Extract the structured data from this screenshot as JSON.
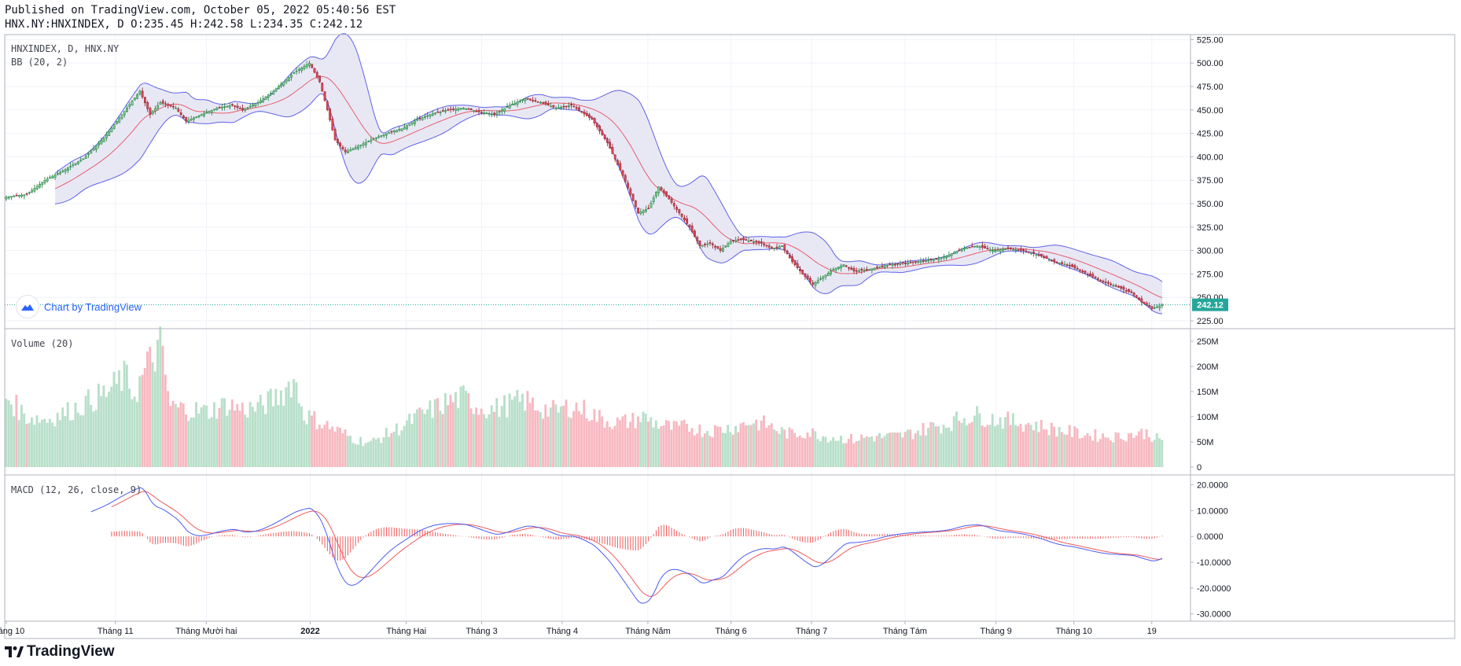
{
  "header": {
    "published": "Published on TradingView.com, October 05, 2022 05:40:56 EST",
    "ohlc": "HNX.NY:HNXINDEX, D O:235.45 H:242.58 L:234.35 C:242.12"
  },
  "panes": {
    "price_label": "HNXINDEX, D, HNX.NY",
    "bb_label": "BB (20, 2)",
    "volume_label": "Volume (20)",
    "macd_label": "MACD (12, 26, close, 9)"
  },
  "watermark": {
    "text": "Chart by TradingView",
    "icon": "tradingview-cloud-icon"
  },
  "footer": {
    "logo_text": "TradingView",
    "icon": "tradingview-logo-icon"
  },
  "colors": {
    "up": "#26a69a",
    "up_fill": "#7fcf8f",
    "down": "#ef5350",
    "down_fill": "#e0485a",
    "bb_band": "#6161e8",
    "bb_fill": "#e6e6f4",
    "bb_basis": "#e85d6a",
    "vol_up": "#b7dfc9",
    "vol_down": "#f7b8c0",
    "macd": "#4d5bf0",
    "signal": "#f05a5a",
    "hist": "#f05a5a",
    "last_price": "#26a69a"
  },
  "chart_data": [
    {
      "type": "candlestick",
      "title": "HNXINDEX, D, HNX.NY",
      "last_close": 242.12,
      "last_label": "242.12",
      "yaxis_ticks": [
        "525.00",
        "500.00",
        "475.00",
        "450.00",
        "425.00",
        "400.00",
        "375.00",
        "350.00",
        "325.00",
        "300.00",
        "275.00",
        "250.00",
        "225.00"
      ],
      "ylim": [
        220,
        527
      ],
      "xaxis_ticks": [
        "Tháng 10",
        "Tháng 11",
        "Tháng Mười hai",
        "2022",
        "Tháng Hai",
        "Tháng 3",
        "Tháng 4",
        "Tháng Năm",
        "Tháng 6",
        "Tháng 7",
        "Tháng Tám",
        "Tháng 9",
        "Tháng 10",
        "19"
      ],
      "close_keypoints": [
        [
          0,
          357
        ],
        [
          8,
          360
        ],
        [
          15,
          375
        ],
        [
          22,
          385
        ],
        [
          30,
          398
        ],
        [
          38,
          420
        ],
        [
          45,
          445
        ],
        [
          52,
          470
        ],
        [
          56,
          445
        ],
        [
          60,
          458
        ],
        [
          66,
          452
        ],
        [
          70,
          438
        ],
        [
          76,
          445
        ],
        [
          82,
          452
        ],
        [
          88,
          455
        ],
        [
          92,
          450
        ],
        [
          98,
          458
        ],
        [
          104,
          470
        ],
        [
          112,
          490
        ],
        [
          118,
          500
        ],
        [
          122,
          480
        ],
        [
          125,
          450
        ],
        [
          128,
          418
        ],
        [
          132,
          405
        ],
        [
          136,
          410
        ],
        [
          142,
          418
        ],
        [
          148,
          425
        ],
        [
          154,
          430
        ],
        [
          160,
          440
        ],
        [
          166,
          446
        ],
        [
          172,
          450
        ],
        [
          178,
          452
        ],
        [
          184,
          448
        ],
        [
          190,
          445
        ],
        [
          196,
          455
        ],
        [
          202,
          462
        ],
        [
          208,
          458
        ],
        [
          214,
          452
        ],
        [
          220,
          455
        ],
        [
          228,
          440
        ],
        [
          234,
          415
        ],
        [
          240,
          380
        ],
        [
          246,
          340
        ],
        [
          250,
          345
        ],
        [
          254,
          368
        ],
        [
          258,
          355
        ],
        [
          262,
          340
        ],
        [
          266,
          325
        ],
        [
          270,
          305
        ],
        [
          274,
          308
        ],
        [
          278,
          300
        ],
        [
          282,
          310
        ],
        [
          286,
          312
        ],
        [
          290,
          310
        ],
        [
          294,
          308
        ],
        [
          298,
          302
        ],
        [
          302,
          305
        ],
        [
          306,
          288
        ],
        [
          310,
          275
        ],
        [
          314,
          264
        ],
        [
          318,
          272
        ],
        [
          322,
          280
        ],
        [
          326,
          285
        ],
        [
          330,
          278
        ],
        [
          336,
          280
        ],
        [
          342,
          284
        ],
        [
          348,
          286
        ],
        [
          354,
          288
        ],
        [
          360,
          290
        ],
        [
          366,
          294
        ],
        [
          372,
          302
        ],
        [
          378,
          305
        ],
        [
          384,
          300
        ],
        [
          390,
          302
        ],
        [
          396,
          300
        ],
        [
          402,
          295
        ],
        [
          408,
          288
        ],
        [
          414,
          284
        ],
        [
          420,
          276
        ],
        [
          426,
          268
        ],
        [
          432,
          262
        ],
        [
          438,
          255
        ],
        [
          442,
          245
        ],
        [
          446,
          238
        ],
        [
          450,
          242
        ]
      ],
      "bb_window": 20,
      "bb_mult": 2
    },
    {
      "type": "bar",
      "title": "Volume (20)",
      "yaxis_ticks": [
        "250M",
        "200M",
        "150M",
        "100M",
        "50M",
        "0"
      ],
      "ylim": [
        0,
        250
      ],
      "unit": "M",
      "volume_keypoints": [
        [
          0,
          140
        ],
        [
          8,
          100
        ],
        [
          16,
          95
        ],
        [
          24,
          110
        ],
        [
          32,
          130
        ],
        [
          40,
          150
        ],
        [
          46,
          180
        ],
        [
          50,
          145
        ],
        [
          55,
          200
        ],
        [
          60,
          240
        ],
        [
          64,
          120
        ],
        [
          70,
          115
        ],
        [
          78,
          110
        ],
        [
          86,
          125
        ],
        [
          92,
          115
        ],
        [
          98,
          118
        ],
        [
          104,
          135
        ],
        [
          108,
          150
        ],
        [
          112,
          175
        ],
        [
          116,
          105
        ],
        [
          120,
          95
        ],
        [
          124,
          85
        ],
        [
          130,
          70
        ],
        [
          136,
          55
        ],
        [
          142,
          48
        ],
        [
          148,
          65
        ],
        [
          154,
          80
        ],
        [
          160,
          100
        ],
        [
          166,
          115
        ],
        [
          172,
          130
        ],
        [
          178,
          138
        ],
        [
          184,
          120
        ],
        [
          190,
          115
        ],
        [
          196,
          125
        ],
        [
          202,
          132
        ],
        [
          208,
          118
        ],
        [
          214,
          110
        ],
        [
          220,
          122
        ],
        [
          226,
          112
        ],
        [
          232,
          95
        ],
        [
          238,
          88
        ],
        [
          244,
          92
        ],
        [
          248,
          100
        ],
        [
          254,
          85
        ],
        [
          260,
          78
        ],
        [
          266,
          80
        ],
        [
          272,
          72
        ],
        [
          278,
          75
        ],
        [
          284,
          80
        ],
        [
          290,
          90
        ],
        [
          296,
          85
        ],
        [
          302,
          70
        ],
        [
          306,
          65
        ],
        [
          312,
          70
        ],
        [
          318,
          62
        ],
        [
          324,
          58
        ],
        [
          330,
          55
        ],
        [
          336,
          60
        ],
        [
          342,
          60
        ],
        [
          348,
          62
        ],
        [
          354,
          70
        ],
        [
          360,
          80
        ],
        [
          366,
          85
        ],
        [
          372,
          98
        ],
        [
          378,
          103
        ],
        [
          384,
          96
        ],
        [
          390,
          92
        ],
        [
          396,
          88
        ],
        [
          402,
          82
        ],
        [
          408,
          75
        ],
        [
          414,
          70
        ],
        [
          420,
          65
        ],
        [
          426,
          62
        ],
        [
          432,
          60
        ],
        [
          438,
          65
        ],
        [
          444,
          68
        ],
        [
          450,
          50
        ]
      ]
    },
    {
      "type": "line",
      "title": "MACD (12, 26, close, 9)",
      "yaxis_ticks": [
        "20.0000",
        "10.0000",
        "0.0000",
        "-10.0000",
        "-20.0000",
        "-30.0000"
      ],
      "ylim": [
        -31,
        22
      ],
      "fast": 12,
      "slow": 26,
      "signal": 9
    }
  ]
}
